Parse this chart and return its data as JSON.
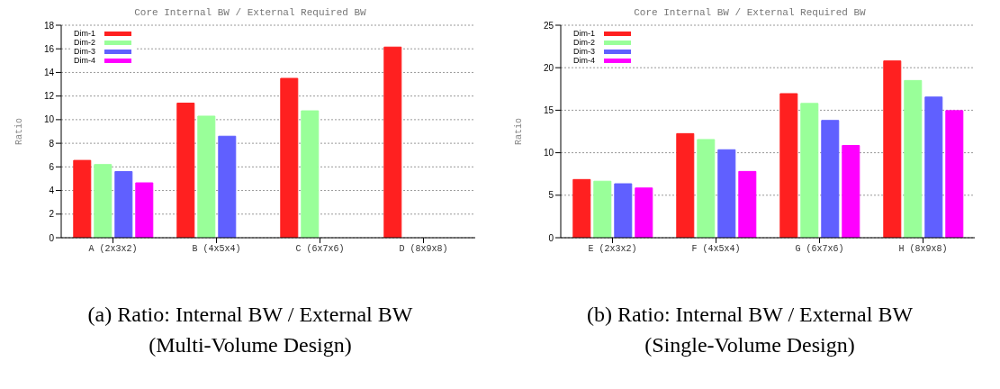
{
  "chart_data": [
    {
      "type": "bar",
      "title": "Core Internal BW / External Required BW",
      "ylabel": "Ratio",
      "categories": [
        "A (2x3x2)",
        "B (4x5x4)",
        "C (6x7x6)",
        "D (8x9x8)"
      ],
      "series": [
        {
          "name": "Dim-1",
          "color": "#ff2020",
          "values": [
            6.55,
            11.4,
            13.5,
            16.15
          ]
        },
        {
          "name": "Dim-2",
          "color": "#99ff99",
          "values": [
            6.2,
            10.3,
            10.75,
            null
          ]
        },
        {
          "name": "Dim-3",
          "color": "#6060ff",
          "values": [
            5.6,
            8.6,
            null,
            null
          ]
        },
        {
          "name": "Dim-4",
          "color": "#ff00ff",
          "values": [
            4.65,
            null,
            null,
            null
          ]
        }
      ],
      "ylim": [
        0,
        18
      ],
      "yticks": [
        0,
        2,
        4,
        6,
        8,
        10,
        12,
        14,
        16,
        18
      ],
      "grid": "y",
      "legend": "top left",
      "annotations": [
        "(a) Ratio: Internal BW / External BW",
        "(Multi-Volume Design)"
      ]
    },
    {
      "type": "bar",
      "title": "Core Internal BW / External Required BW",
      "ylabel": "Ratio",
      "categories": [
        "E (2x3x2)",
        "F (4x5x4)",
        "G (6x7x6)",
        "H (8x9x8)"
      ],
      "series": [
        {
          "name": "Dim-1",
          "color": "#ff2020",
          "values": [
            6.85,
            12.25,
            16.95,
            20.8
          ]
        },
        {
          "name": "Dim-2",
          "color": "#99ff99",
          "values": [
            6.65,
            11.55,
            15.8,
            18.5
          ]
        },
        {
          "name": "Dim-3",
          "color": "#6060ff",
          "values": [
            6.35,
            10.35,
            13.8,
            16.55
          ]
        },
        {
          "name": "Dim-4",
          "color": "#ff00ff",
          "values": [
            5.85,
            7.8,
            10.85,
            14.95
          ]
        }
      ],
      "ylim": [
        0,
        25
      ],
      "yticks": [
        0,
        5,
        10,
        15,
        20,
        25
      ],
      "grid": "y",
      "legend": "top left",
      "annotations": [
        "(b) Ratio: Internal BW / External BW",
        "(Single-Volume Design)"
      ]
    }
  ]
}
